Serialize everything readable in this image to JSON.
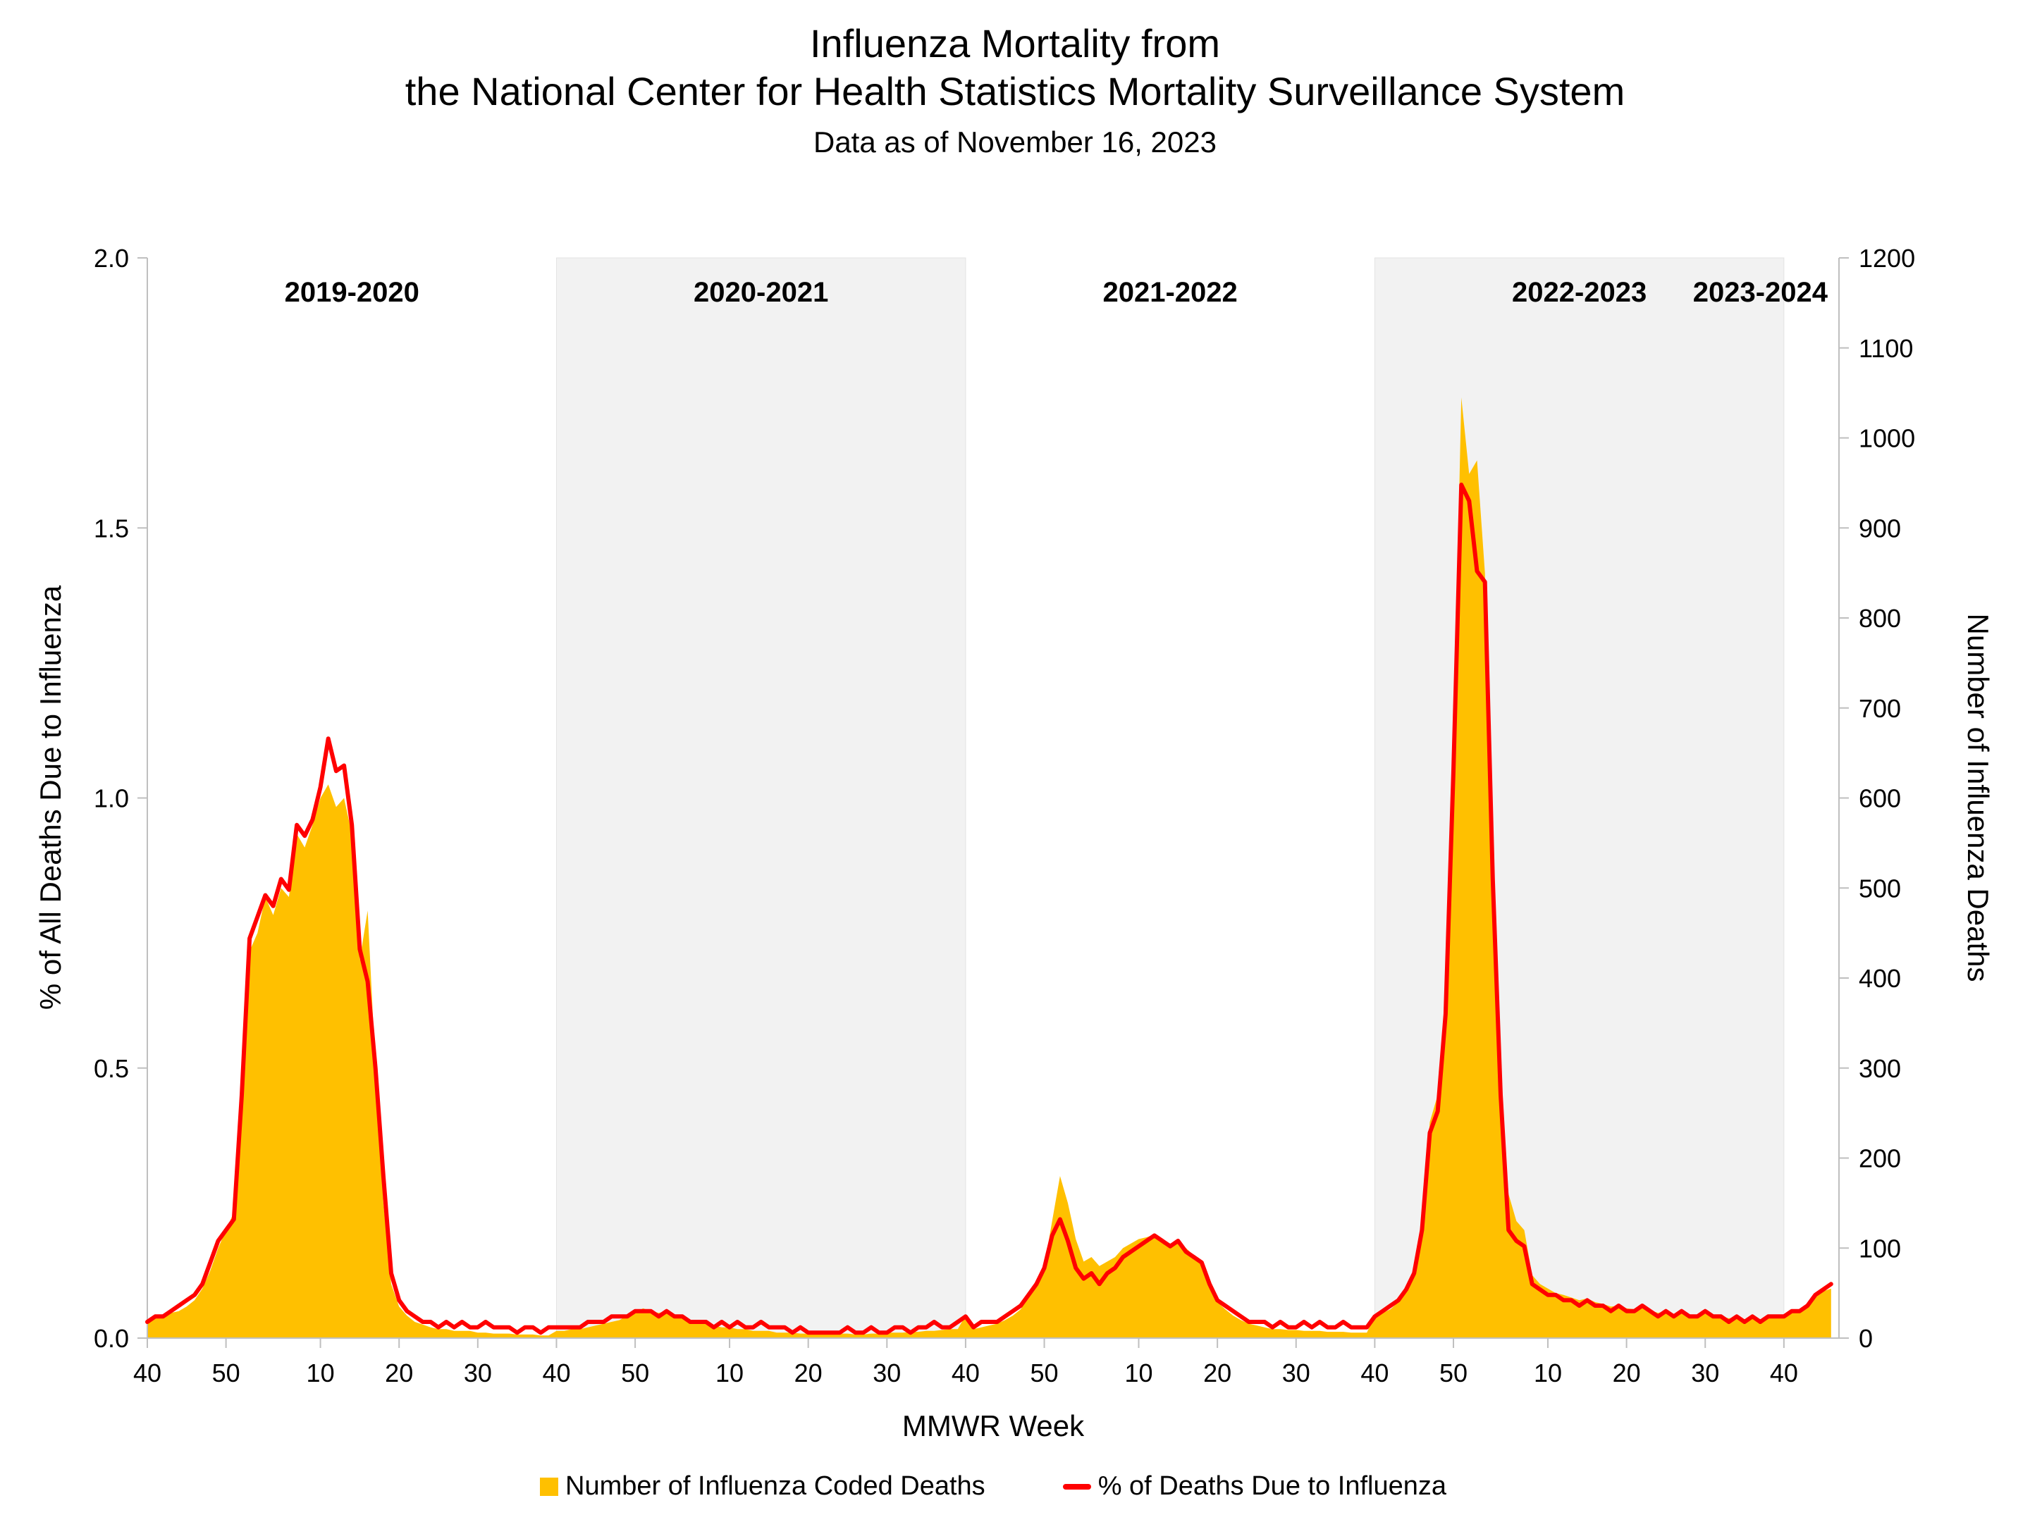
{
  "title": {
    "line1": "Influenza Mortality from",
    "line2": "the National Center for Health Statistics Mortality Surveillance System",
    "subtitle": "Data as of November 16, 2023"
  },
  "legend": {
    "area_label": "Number of Influenza Coded Deaths",
    "line_label": "% of Deaths Due to Influenza"
  },
  "colors": {
    "area": "#FFC000",
    "line": "#FF0000",
    "band": "#F2F2F2",
    "axis": "#BFBFBF",
    "text": "#000000"
  },
  "chart_data": {
    "type": "area+line dual-axis time series",
    "title": "Influenza Mortality from the National Center for Health Statistics Mortality Surveillance System",
    "subtitle": "Data as of November 16, 2023",
    "xlabel": "MMWR Week",
    "ylabel_left": "% of All Deaths Due to Influenza",
    "ylabel_right": "Number of Influenza Deaths",
    "ylim_left": [
      0,
      2.0
    ],
    "ylim_right": [
      0,
      1200
    ],
    "left_tick_values": [
      0,
      0.5,
      1.0,
      1.5,
      2.0
    ],
    "left_tick_labels": [
      "0.0",
      "0.5",
      "1.0",
      "1.5",
      "2.0"
    ],
    "right_tick_values": [
      0,
      100,
      200,
      300,
      400,
      500,
      600,
      700,
      800,
      900,
      1000,
      1100,
      1200
    ],
    "right_tick_labels": [
      "0",
      "100",
      "200",
      "300",
      "400",
      "500",
      "600",
      "700",
      "800",
      "900",
      "1000",
      "1100",
      "1200"
    ],
    "x_tick_indices": [
      0,
      10,
      22,
      32,
      42,
      52,
      62,
      74,
      84,
      94,
      104,
      114,
      126,
      136,
      146,
      156,
      166,
      178,
      188,
      198,
      208
    ],
    "x_tick_labels": [
      "40",
      "50",
      "10",
      "20",
      "30",
      "40",
      "50",
      "10",
      "20",
      "30",
      "40",
      "50",
      "10",
      "20",
      "30",
      "40",
      "50",
      "10",
      "20",
      "30",
      "40"
    ],
    "seasons": [
      {
        "label": "2019-2020",
        "start": 0,
        "weeks": 52,
        "shaded": false,
        "label_index": 26
      },
      {
        "label": "2020-2021",
        "start": 52,
        "weeks": 52,
        "shaded": true,
        "label_index": 78
      },
      {
        "label": "2021-2022",
        "start": 104,
        "weeks": 52,
        "shaded": false,
        "label_index": 130
      },
      {
        "label": "2022-2023",
        "start": 156,
        "weeks": 52,
        "shaded": true,
        "label_index": 182
      },
      {
        "label": "2023-2024",
        "start": 208,
        "weeks": 7,
        "shaded": false,
        "label_index": 205
      }
    ],
    "series": [
      {
        "name": "Number of Influenza Coded Deaths",
        "type": "area",
        "axis": "right",
        "values": [
          20,
          22,
          25,
          28,
          30,
          35,
          42,
          55,
          75,
          100,
          120,
          140,
          270,
          430,
          450,
          490,
          470,
          500,
          490,
          560,
          545,
          570,
          600,
          615,
          590,
          600,
          560,
          420,
          475,
          300,
          150,
          60,
          35,
          25,
          18,
          15,
          12,
          10,
          10,
          8,
          8,
          8,
          6,
          6,
          5,
          5,
          5,
          4,
          4,
          4,
          3,
          3,
          8,
          8,
          10,
          10,
          12,
          14,
          16,
          18,
          20,
          25,
          28,
          33,
          30,
          28,
          30,
          26,
          24,
          20,
          18,
          16,
          14,
          12,
          12,
          10,
          10,
          8,
          8,
          8,
          6,
          6,
          6,
          5,
          5,
          5,
          4,
          4,
          5,
          5,
          4,
          4,
          5,
          5,
          6,
          6,
          6,
          7,
          7,
          8,
          8,
          9,
          10,
          10,
          25,
          10,
          12,
          14,
          16,
          20,
          25,
          32,
          45,
          60,
          80,
          130,
          180,
          150,
          110,
          85,
          90,
          80,
          85,
          90,
          100,
          105,
          110,
          112,
          115,
          110,
          105,
          108,
          100,
          92,
          85,
          60,
          40,
          32,
          25,
          20,
          16,
          14,
          12,
          10,
          10,
          9,
          9,
          8,
          8,
          8,
          7,
          7,
          7,
          6,
          6,
          6,
          25,
          28,
          32,
          40,
          55,
          75,
          130,
          240,
          270,
          380,
          650,
          1045,
          960,
          975,
          850,
          520,
          280,
          160,
          130,
          120,
          70,
          60,
          55,
          50,
          48,
          45,
          42,
          44,
          40,
          38,
          35,
          36,
          33,
          32,
          34,
          31,
          28,
          30,
          27,
          28,
          26,
          25,
          27,
          24,
          24,
          22,
          23,
          21,
          22,
          21,
          22,
          23,
          25,
          28,
          32,
          38,
          45,
          52,
          55
        ]
      },
      {
        "name": "% of Deaths Due to Influenza",
        "type": "line",
        "axis": "left",
        "values": [
          0.03,
          0.04,
          0.04,
          0.05,
          0.06,
          0.07,
          0.08,
          0.1,
          0.14,
          0.18,
          0.2,
          0.22,
          0.45,
          0.74,
          0.78,
          0.82,
          0.8,
          0.85,
          0.83,
          0.95,
          0.93,
          0.96,
          1.02,
          1.11,
          1.05,
          1.06,
          0.95,
          0.72,
          0.66,
          0.5,
          0.3,
          0.12,
          0.07,
          0.05,
          0.04,
          0.03,
          0.03,
          0.02,
          0.03,
          0.02,
          0.03,
          0.02,
          0.02,
          0.03,
          0.02,
          0.02,
          0.02,
          0.01,
          0.02,
          0.02,
          0.01,
          0.02,
          0.02,
          0.02,
          0.02,
          0.02,
          0.03,
          0.03,
          0.03,
          0.04,
          0.04,
          0.04,
          0.05,
          0.05,
          0.05,
          0.04,
          0.05,
          0.04,
          0.04,
          0.03,
          0.03,
          0.03,
          0.02,
          0.03,
          0.02,
          0.03,
          0.02,
          0.02,
          0.03,
          0.02,
          0.02,
          0.02,
          0.01,
          0.02,
          0.01,
          0.01,
          0.01,
          0.01,
          0.01,
          0.02,
          0.01,
          0.01,
          0.02,
          0.01,
          0.01,
          0.02,
          0.02,
          0.01,
          0.02,
          0.02,
          0.03,
          0.02,
          0.02,
          0.03,
          0.04,
          0.02,
          0.03,
          0.03,
          0.03,
          0.04,
          0.05,
          0.06,
          0.08,
          0.1,
          0.13,
          0.19,
          0.22,
          0.18,
          0.13,
          0.11,
          0.12,
          0.1,
          0.12,
          0.13,
          0.15,
          0.16,
          0.17,
          0.18,
          0.19,
          0.18,
          0.17,
          0.18,
          0.16,
          0.15,
          0.14,
          0.1,
          0.07,
          0.06,
          0.05,
          0.04,
          0.03,
          0.03,
          0.03,
          0.02,
          0.03,
          0.02,
          0.02,
          0.03,
          0.02,
          0.03,
          0.02,
          0.02,
          0.03,
          0.02,
          0.02,
          0.02,
          0.04,
          0.05,
          0.06,
          0.07,
          0.09,
          0.12,
          0.2,
          0.38,
          0.42,
          0.6,
          1.05,
          1.58,
          1.55,
          1.42,
          1.4,
          0.85,
          0.45,
          0.2,
          0.18,
          0.17,
          0.1,
          0.09,
          0.08,
          0.08,
          0.07,
          0.07,
          0.06,
          0.07,
          0.06,
          0.06,
          0.05,
          0.06,
          0.05,
          0.05,
          0.06,
          0.05,
          0.04,
          0.05,
          0.04,
          0.05,
          0.04,
          0.04,
          0.05,
          0.04,
          0.04,
          0.03,
          0.04,
          0.03,
          0.04,
          0.03,
          0.04,
          0.04,
          0.04,
          0.05,
          0.05,
          0.06,
          0.08,
          0.09,
          0.1
        ]
      }
    ],
    "legend_position": "bottom",
    "grid": false
  }
}
